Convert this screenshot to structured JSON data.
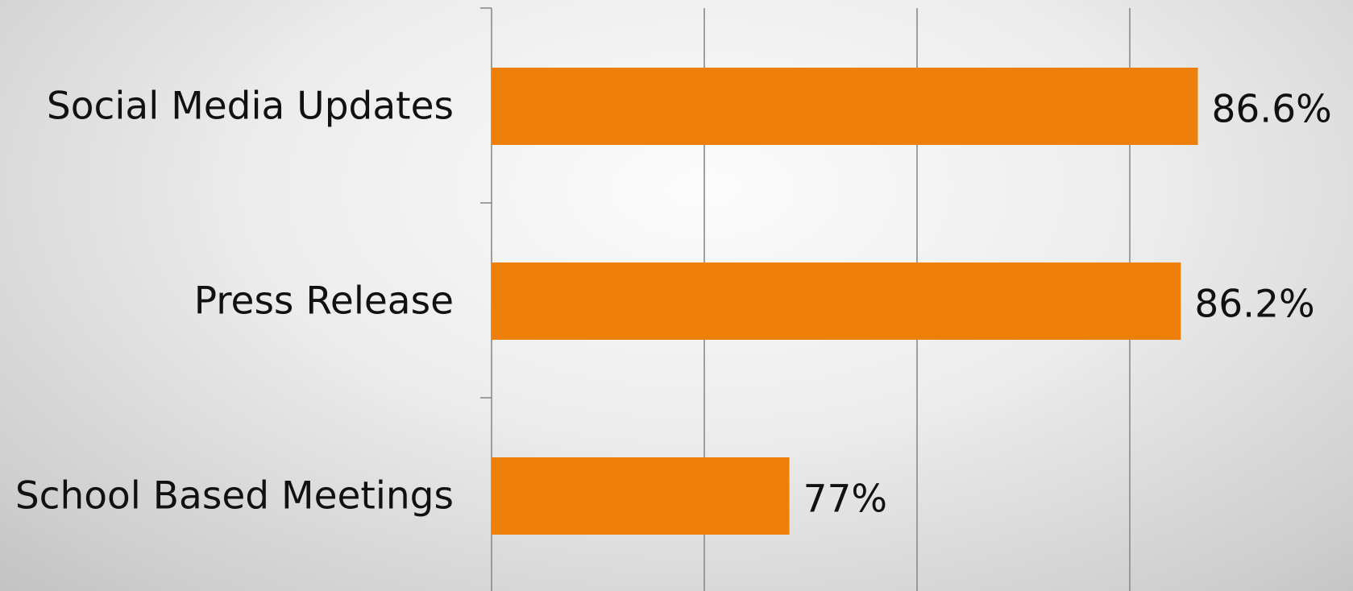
{
  "chart_data": {
    "type": "bar",
    "orientation": "horizontal",
    "categories": [
      "Social Media Updates",
      "Press Release",
      "School Based Meetings"
    ],
    "values": [
      86.6,
      86.2,
      77
    ],
    "value_labels": [
      "86.6%",
      "86.2%",
      "77%"
    ],
    "xlim": [
      70,
      89
    ],
    "gridlines": [
      70,
      75,
      80,
      85
    ],
    "grid": true,
    "legend": "none",
    "bar_color": "#EF7F0B"
  }
}
